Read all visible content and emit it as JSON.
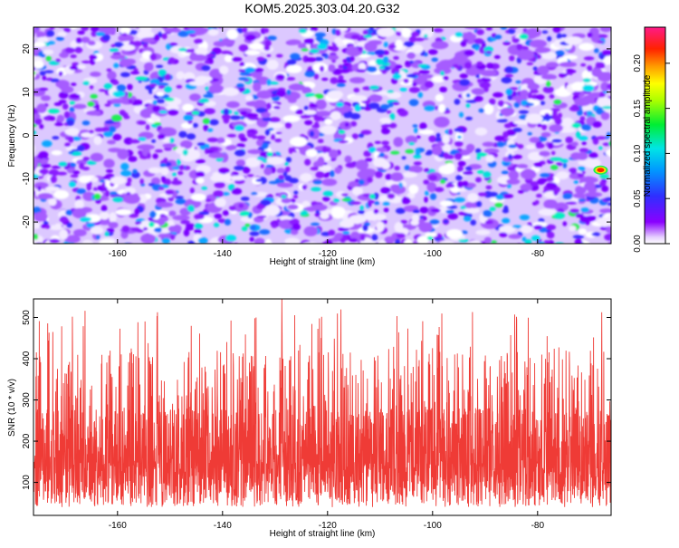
{
  "title": "KOM5.2025.303.04.20.G32",
  "colors": {
    "snr_line": "#ef3b36",
    "hot_spot": "#ff2200",
    "background": "#ffffff",
    "axis": "#000000"
  },
  "chart_data": [
    {
      "type": "heatmap",
      "xlabel": "Height of straight line (km)",
      "ylabel": "Frequency (Hz)",
      "xlim": [
        -176,
        -66
      ],
      "ylim": [
        -25,
        25
      ],
      "xticks": [
        -160,
        -140,
        -120,
        -100,
        -80
      ],
      "yticks": [
        -20,
        -10,
        0,
        10,
        20
      ],
      "colorbar": {
        "label": "Normalized spectral amplitude",
        "range": [
          0,
          0.24
        ],
        "ticks": [
          "0.00",
          "0.05",
          "0.10",
          "0.15",
          "0.20"
        ],
        "tick_values": [
          0,
          0.05,
          0.1,
          0.15,
          0.2
        ],
        "colormap": "purple-blue-cyan-green-yellow-red-magenta"
      },
      "notable_peak": {
        "x": -68,
        "y": -8,
        "value": 0.22
      },
      "grid": false
    },
    {
      "type": "line",
      "xlabel": "Height of straight line (km)",
      "ylabel": "SNR (10 * v/v)",
      "xlim": [
        -176,
        -66
      ],
      "ylim": [
        20,
        545
      ],
      "xticks": [
        -160,
        -140,
        -120,
        -100,
        -80
      ],
      "yticks": [
        100,
        200,
        300,
        400,
        500
      ],
      "baseline_mean": 170,
      "typical_peak_range": [
        300,
        450
      ],
      "max_value": 545,
      "grid": false
    }
  ]
}
